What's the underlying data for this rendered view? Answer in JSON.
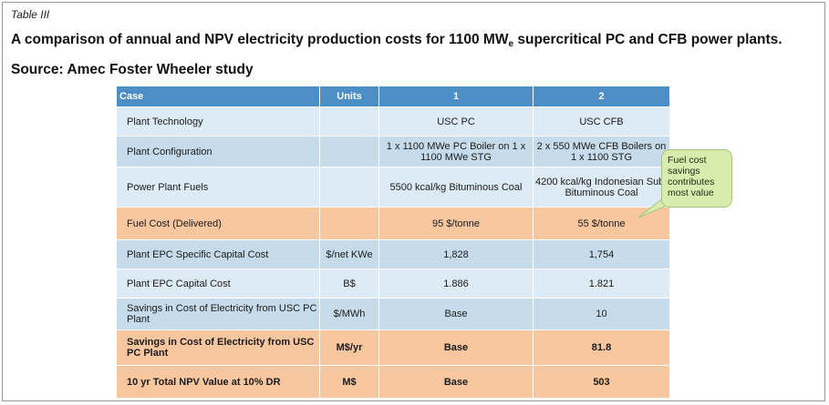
{
  "label": "Table III",
  "caption": {
    "before": "A comparison of annual and NPV electricity production costs for 1100 MW",
    "subscript": "e",
    "after": " supercritical PC and CFB power plants. Source: Amec Foster Wheeler study"
  },
  "table": {
    "headers": [
      "Case",
      "Units",
      "1",
      "2"
    ],
    "rows": [
      [
        "Plant Technology",
        "",
        "USC PC",
        "USC CFB"
      ],
      [
        "Plant Configuration",
        "",
        "1 x 1100 MWe PC Boiler on 1 x 1100 MWe STG",
        "2 x 550 MWe CFB Boilers on 1 x 1100 STG"
      ],
      [
        "Power Plant Fuels",
        "",
        "5500 kcal/kg Bituminous Coal",
        "4200 kcal/kg Indonesian Sub-Bituminous Coal"
      ],
      [
        "Fuel Cost (Delivered)",
        "",
        "95 $/tonne",
        "55 $/tonne"
      ],
      [
        "Plant EPC Specific Capital Cost",
        "$/net KWe",
        "1,828",
        "1,754"
      ],
      [
        "Plant EPC Capital Cost",
        "B$",
        "1.886",
        "1.821"
      ],
      [
        "Savings in Cost of Electricity from USC PC Plant",
        "$/MWh",
        "Base",
        "10"
      ],
      [
        "Savings in Cost of Electricity from USC PC Plant",
        "M$/yr",
        "Base",
        "81.8"
      ],
      [
        "10 yr Total NPV Value at 10% DR",
        "M$",
        "Base",
        "503"
      ]
    ]
  },
  "callout": "Fuel cost savings contributes most value"
}
